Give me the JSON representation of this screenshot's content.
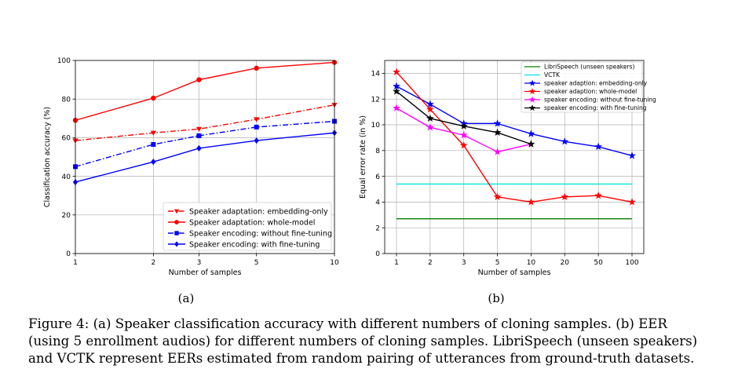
{
  "chart_data": [
    {
      "type": "line",
      "x": [
        1,
        2,
        3,
        5,
        10
      ],
      "x_tick_labels": [
        "1",
        "2",
        "3",
        "5",
        "10"
      ],
      "y_ticks": [
        0,
        20,
        40,
        60,
        80,
        100
      ],
      "xlabel": "Number of samples",
      "ylabel": "Classification accuracy (%)",
      "ylim": [
        0,
        100
      ],
      "grid": true,
      "legend_position": "bottom-right",
      "series": [
        {
          "name": "Speaker adaptation: embedding-only",
          "values": [
            58.5,
            62.5,
            64.5,
            69.5,
            77
          ],
          "color": "#ff0000",
          "dash": "dashdot",
          "marker": "triangle-down"
        },
        {
          "name": "Speaker adaptation: whole-model",
          "values": [
            69,
            80.5,
            90,
            96,
            99
          ],
          "color": "#ff0000",
          "dash": "solid",
          "marker": "circle"
        },
        {
          "name": "Speaker encoding: without fine-tuning",
          "values": [
            45,
            56.5,
            61,
            65.5,
            68.5
          ],
          "color": "#0000ff",
          "dash": "dashdot",
          "marker": "square"
        },
        {
          "name": "Speaker encoding: with fine-tuning",
          "values": [
            37,
            47.5,
            54.5,
            58.5,
            62.5
          ],
          "color": "#0000ff",
          "dash": "solid",
          "marker": "diamond"
        }
      ]
    },
    {
      "type": "line",
      "categories": [
        "1",
        "2",
        "3",
        "5",
        "10",
        "20",
        "50",
        "100"
      ],
      "y_ticks": [
        0,
        2,
        4,
        6,
        8,
        10,
        12,
        14
      ],
      "xlabel": "Number of samples",
      "ylabel": "Equal error rate (in %)",
      "ylim": [
        0,
        15
      ],
      "grid": true,
      "legend_position": "top-right",
      "series": [
        {
          "name": "LibriSpeech (unseen speakers)",
          "values": [
            2.7,
            2.7,
            2.7,
            2.7,
            2.7,
            2.7,
            2.7,
            2.7
          ],
          "color": "#008000",
          "marker": "none"
        },
        {
          "name": "VCTK",
          "values": [
            5.4,
            5.4,
            5.4,
            5.4,
            5.4,
            5.4,
            5.4,
            5.4
          ],
          "color": "#00e5e5",
          "marker": "none"
        },
        {
          "name": "speaker adaption: embedding-only",
          "values": [
            13.0,
            11.6,
            10.1,
            10.1,
            9.3,
            8.7,
            8.3,
            7.6
          ],
          "color": "#0000ff",
          "marker": "star"
        },
        {
          "name": "speaker adaption: whole-model",
          "values": [
            14.1,
            11.2,
            8.4,
            4.4,
            4.0,
            4.4,
            4.5,
            4.0
          ],
          "color": "#ff0000",
          "marker": "star"
        },
        {
          "name": "speaker encoding: without fine-tuning",
          "values": [
            11.3,
            9.8,
            9.2,
            7.9,
            8.5,
            null,
            null,
            null
          ],
          "color": "#ff00ff",
          "marker": "star"
        },
        {
          "name": "speaker encoding: with fine-tuning",
          "values": [
            12.6,
            10.5,
            9.9,
            9.4,
            8.5,
            null,
            null,
            null
          ],
          "color": "#000000",
          "marker": "star"
        }
      ]
    }
  ],
  "subfigures": {
    "a": "(a)",
    "b": "(b)"
  },
  "caption": [
    "Figure 4: (a) Speaker classification accuracy with different numbers of cloning samples. (b) EER",
    "(using 5 enrollment audios) for different numbers of cloning samples. LibriSpeech (unseen speakers)",
    "and VCTK represent EERs estimated from random pairing of utterances from ground-truth datasets."
  ]
}
